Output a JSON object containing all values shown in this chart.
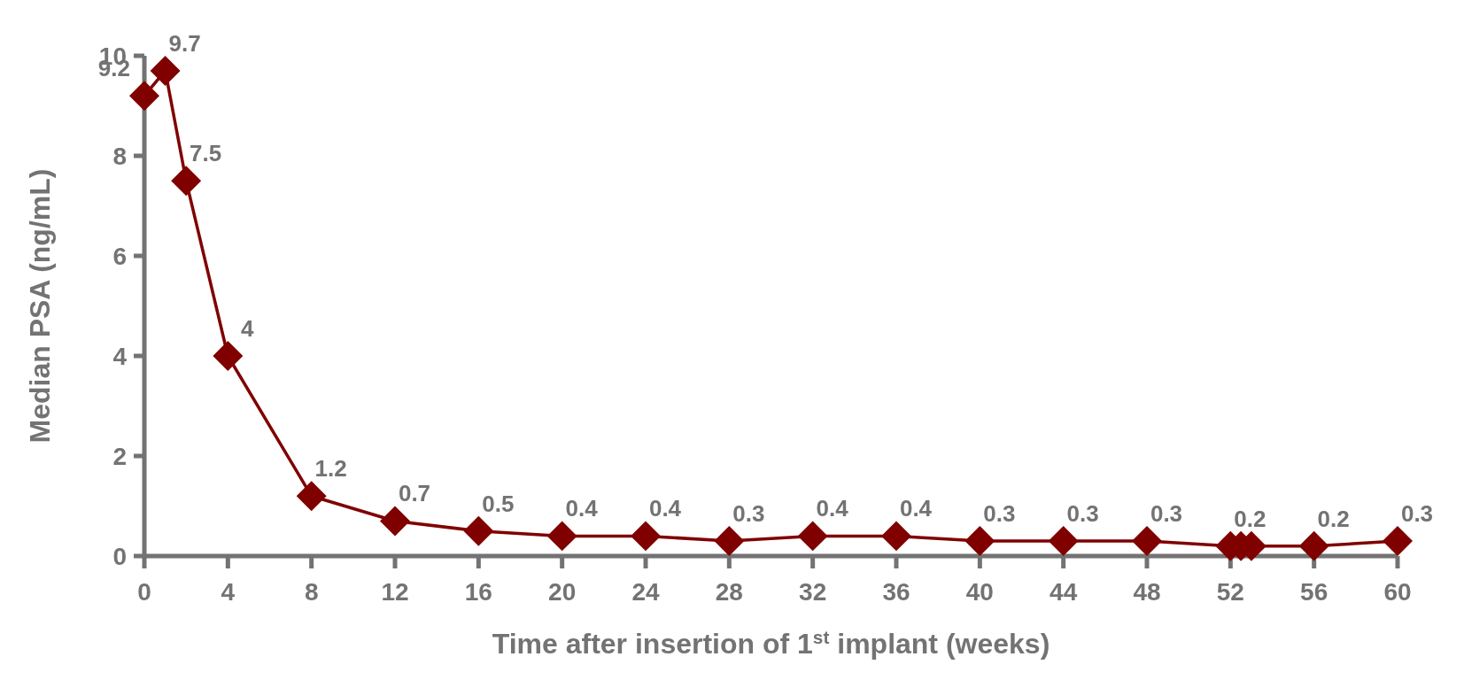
{
  "chart_data": {
    "type": "line",
    "xlabel": "Time after insertion of 1$^{st}$ implant (weeks)",
    "ylabel": "Median PSA (ng/mL)",
    "x": [
      0,
      1,
      2,
      4,
      8,
      12,
      16,
      20,
      24,
      28,
      32,
      36,
      40,
      44,
      48,
      52,
      52.5,
      53,
      56,
      60
    ],
    "series": [
      {
        "color": "#800000",
        "values": [
          9.2,
          9.7,
          7.5,
          4,
          1.2,
          0.7,
          0.5,
          0.4,
          0.4,
          0.3,
          0.4,
          0.4,
          0.3,
          0.3,
          0.3,
          0.2,
          0.2,
          0.2,
          0.2,
          0.3
        ],
        "value_labels": [
          "9.2",
          "9.7",
          "7.5",
          "4",
          "1.2",
          "0.7",
          "0.5",
          "0.4",
          "0.4",
          "0.3",
          "0.4",
          "0.4",
          "0.3",
          "0.3",
          "0.3",
          "0.2",
          null,
          null,
          "0.2",
          "0.3"
        ]
      }
    ],
    "xlim": [
      0,
      60
    ],
    "xticks": [
      0,
      4,
      8,
      12,
      16,
      20,
      24,
      28,
      32,
      36,
      40,
      44,
      48,
      52,
      56,
      60
    ],
    "ylim": [
      0,
      10
    ],
    "yticks": [
      0,
      2,
      4,
      6,
      8,
      10
    ],
    "marker": "diamond",
    "grid": false
  }
}
